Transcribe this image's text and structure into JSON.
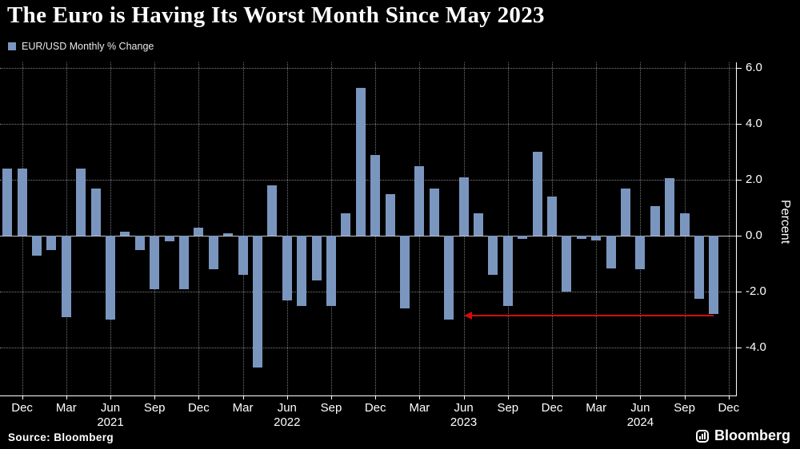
{
  "header": {
    "title": "The Euro is Having Its Worst Month Since May 2023",
    "legend_label": "EUR/USD Monthly % Change"
  },
  "footer": {
    "source": "Source: Bloomberg",
    "brand": "Bloomberg"
  },
  "chart_data": {
    "type": "bar",
    "title": "The Euro is Having Its Worst Month Since May 2023",
    "legend": "EUR/USD Monthly % Change",
    "ylabel": "Percent",
    "xlabel": "",
    "ylim": [
      -5.7,
      6.2
    ],
    "grid": true,
    "legend_position": "top-left",
    "ytick_values": [
      6.0,
      4.0,
      2.0,
      0.0,
      -2.0,
      -4.0
    ],
    "ytick_labels": [
      "6.0",
      "4.0",
      "2.0",
      "0.0",
      "-2.0",
      "-4.0"
    ],
    "bar_color": "#7A96BF",
    "arrow_color": "#D40B0B",
    "slots": 50,
    "months": [
      "Nov 2020",
      "Dec 2020",
      "Jan 2021",
      "Feb 2021",
      "Mar 2021",
      "Apr 2021",
      "May 2021",
      "Jun 2021",
      "Jul 2021",
      "Aug 2021",
      "Sep 2021",
      "Oct 2021",
      "Nov 2021",
      "Dec 2021",
      "Jan 2022",
      "Feb 2022",
      "Mar 2022",
      "Apr 2022",
      "May 2022",
      "Jun 2022",
      "Jul 2022",
      "Aug 2022",
      "Sep 2022",
      "Oct 2022",
      "Nov 2022",
      "Dec 2022",
      "Jan 2023",
      "Feb 2023",
      "Mar 2023",
      "Apr 2023",
      "May 2023",
      "Jun 2023",
      "Jul 2023",
      "Aug 2023",
      "Sep 2023",
      "Oct 2023",
      "Nov 2023",
      "Dec 2023",
      "Jan 2024",
      "Feb 2024",
      "Mar 2024",
      "Apr 2024",
      "May 2024",
      "Jun 2024",
      "Jul 2024",
      "Aug 2024",
      "Sep 2024",
      "Oct 2024",
      "Nov 2024"
    ],
    "values": [
      2.4,
      2.4,
      -0.7,
      -0.5,
      -2.9,
      2.4,
      1.7,
      -3.0,
      0.15,
      -0.5,
      -1.9,
      -0.2,
      -1.9,
      0.3,
      -1.2,
      0.1,
      -1.4,
      -4.7,
      1.8,
      -2.3,
      -2.5,
      -1.6,
      -2.5,
      0.8,
      5.3,
      2.9,
      1.5,
      -2.6,
      2.5,
      1.7,
      -3.0,
      2.1,
      0.8,
      -1.4,
      -2.5,
      -0.1,
      3.0,
      1.4,
      -2.0,
      -0.1,
      -0.15,
      -1.15,
      1.7,
      -1.2,
      1.05,
      2.05,
      0.8,
      -2.25,
      -2.8
    ],
    "x_ticks": [
      {
        "index": 1,
        "label": "Dec"
      },
      {
        "index": 4,
        "label": "Mar"
      },
      {
        "index": 7,
        "label": "Jun"
      },
      {
        "index": 10,
        "label": "Sep"
      },
      {
        "index": 13,
        "label": "Dec"
      },
      {
        "index": 16,
        "label": "Mar"
      },
      {
        "index": 19,
        "label": "Jun"
      },
      {
        "index": 22,
        "label": "Sep"
      },
      {
        "index": 25,
        "label": "Dec"
      },
      {
        "index": 28,
        "label": "Mar"
      },
      {
        "index": 31,
        "label": "Jun"
      },
      {
        "index": 34,
        "label": "Sep"
      },
      {
        "index": 37,
        "label": "Dec"
      },
      {
        "index": 40,
        "label": "Mar"
      },
      {
        "index": 43,
        "label": "Jun"
      },
      {
        "index": 46,
        "label": "Sep"
      },
      {
        "index": 49,
        "label": "Dec"
      }
    ],
    "year_labels": [
      {
        "index": 7,
        "label": "2021"
      },
      {
        "index": 19,
        "label": "2022"
      },
      {
        "index": 31,
        "label": "2023"
      },
      {
        "index": 43,
        "label": "2024"
      }
    ],
    "annotation": {
      "type": "arrow",
      "y": -2.85,
      "from_index": 48,
      "to_index": 31.1
    }
  }
}
